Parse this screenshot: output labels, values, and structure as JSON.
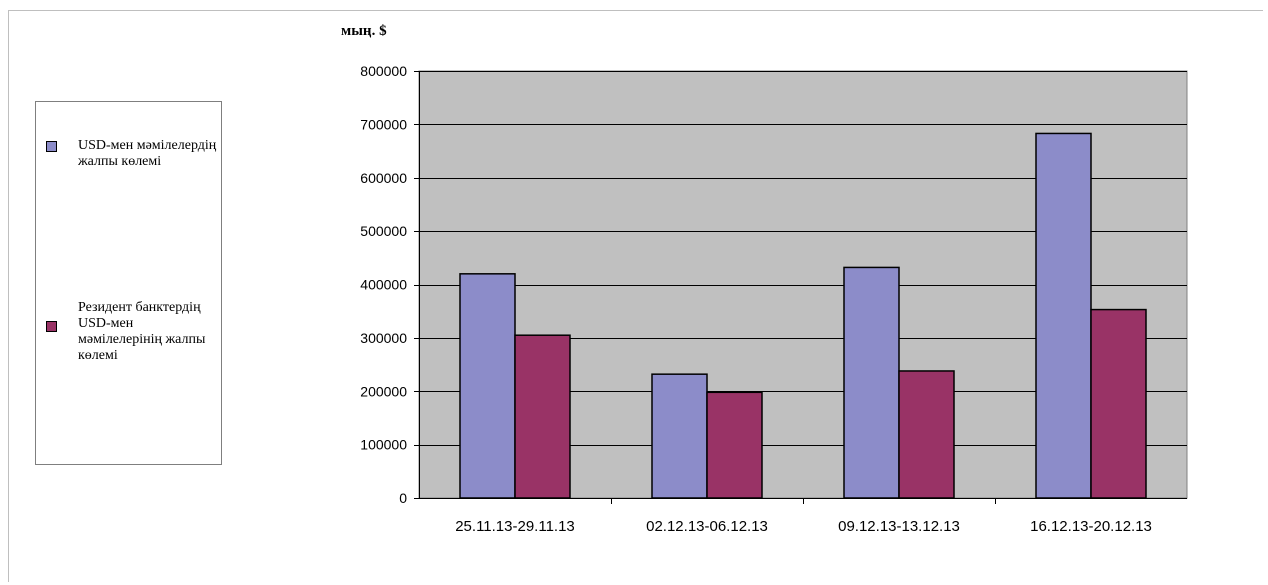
{
  "chart_data": {
    "type": "bar",
    "ylabel": "мың. $",
    "categories": [
      "25.11.13-29.11.13",
      "02.12.13-06.12.13",
      "09.12.13-13.12.13",
      "16.12.13-20.12.13"
    ],
    "series": [
      {
        "name": "USD-мен мәмілелердің жалпы көлемі",
        "values": [
          420000,
          232000,
          432000,
          683000
        ],
        "color": "#8c8cc9"
      },
      {
        "name": "Резидент банктердің USD-мен мәмілелерінің жалпы көлемі",
        "values": [
          305000,
          198000,
          238000,
          353000
        ],
        "color": "#993366"
      }
    ],
    "ylim": [
      0,
      800000
    ],
    "yticks": [
      0,
      100000,
      200000,
      300000,
      400000,
      500000,
      600000,
      700000,
      800000
    ],
    "grid": true,
    "plot_background": "#c0c0c0",
    "legend_position": "left"
  }
}
